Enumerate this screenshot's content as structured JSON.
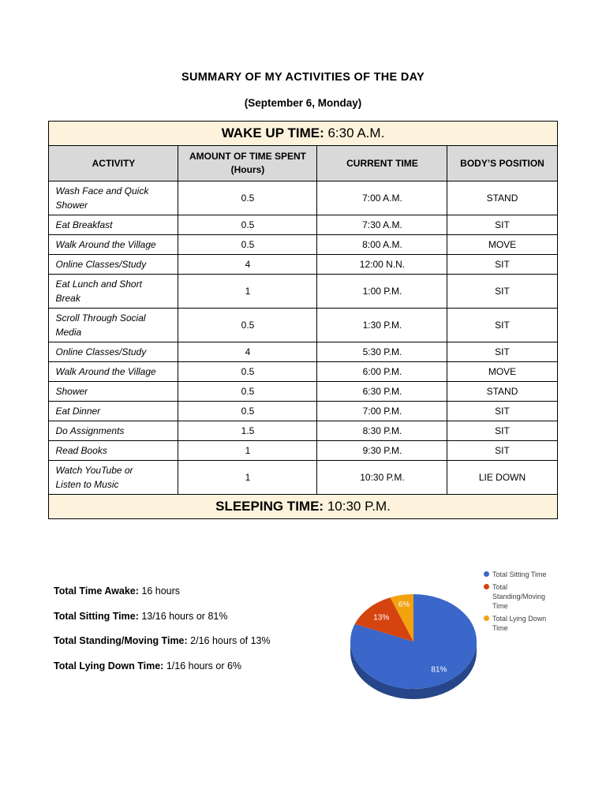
{
  "document": {
    "title": "SUMMARY OF MY ACTIVITIES OF THE DAY",
    "subtitle": "(September 6, Monday)"
  },
  "table": {
    "wake": {
      "label": "WAKE UP TIME:",
      "value": "6:30 A.M."
    },
    "sleep": {
      "label": "SLEEPING TIME:",
      "value": "10:30 P.M."
    },
    "columns": [
      "ACTIVITY",
      "AMOUNT OF TIME SPENT (Hours)",
      "CURRENT TIME",
      "BODY’S POSITION"
    ],
    "rows": [
      {
        "activity": "Wash Face and Quick Shower",
        "hours": "0.5",
        "time": "7:00 A.M.",
        "position": "STAND"
      },
      {
        "activity": "Eat Breakfast",
        "hours": "0.5",
        "time": "7:30 A.M.",
        "position": "SIT"
      },
      {
        "activity": "Walk Around the Village",
        "hours": "0.5",
        "time": "8:00 A.M.",
        "position": "MOVE"
      },
      {
        "activity": "Online Classes/Study",
        "hours": "4",
        "time": "12:00 N.N.",
        "position": "SIT"
      },
      {
        "activity": "Eat Lunch and Short Break",
        "hours": "1",
        "time": "1:00 P.M.",
        "position": "SIT"
      },
      {
        "activity": "Scroll Through Social Media",
        "hours": "0.5",
        "time": "1:30 P.M.",
        "position": "SIT"
      },
      {
        "activity": "Online Classes/Study",
        "hours": "4",
        "time": "5:30 P.M.",
        "position": "SIT"
      },
      {
        "activity": "Walk Around the Village",
        "hours": "0.5",
        "time": "6:00 P.M.",
        "position": "MOVE"
      },
      {
        "activity": "Shower",
        "hours": "0.5",
        "time": "6:30 P.M.",
        "position": "STAND"
      },
      {
        "activity": "Eat Dinner",
        "hours": "0.5",
        "time": "7:00 P.M.",
        "position": "SIT"
      },
      {
        "activity": "Do Assignments",
        "hours": "1.5",
        "time": "8:30 P.M.",
        "position": "SIT"
      },
      {
        "activity": "Read Books",
        "hours": "1",
        "time": "9:30 P.M.",
        "position": "SIT"
      },
      {
        "activity": "Watch YouTube or Listen to Music",
        "hours": "1",
        "time": "10:30 P.M.",
        "position": "LIE DOWN"
      }
    ]
  },
  "summary": [
    {
      "label": "Total Time Awake:",
      "value": "16 hours"
    },
    {
      "label": "Total Sitting Time:",
      "value": "13/16 hours or 81%"
    },
    {
      "label": "Total Standing/Moving Time:",
      "value": "2/16 hours of 13%"
    },
    {
      "label": "Total Lying Down Time:",
      "value": "1/16 hours or 6%"
    }
  ],
  "chart_data": {
    "type": "pie",
    "style": "3d",
    "legend_position": "right",
    "labels": [
      "Total Sitting Time",
      "Total Standing/Moving Time",
      "Total Lying Down Time"
    ],
    "values": [
      81,
      13,
      6
    ],
    "value_labels": [
      "81%",
      "13%",
      "6%"
    ],
    "colors": [
      "#3a67c9",
      "#d5430e",
      "#f2a20d"
    ]
  },
  "colors": {
    "band_background": "#fdf3dc",
    "header_background": "#d9d9d9"
  }
}
